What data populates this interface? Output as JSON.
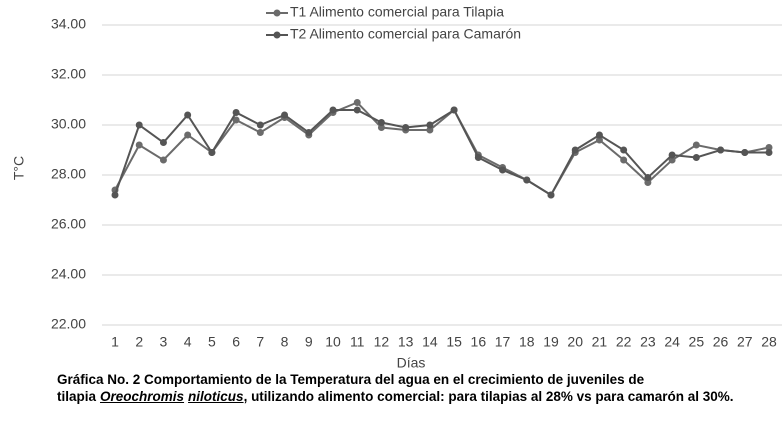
{
  "chart_data": {
    "type": "line",
    "categories": [
      "1",
      "2",
      "3",
      "4",
      "5",
      "6",
      "7",
      "8",
      "9",
      "10",
      "11",
      "12",
      "13",
      "14",
      "15",
      "16",
      "17",
      "18",
      "19",
      "20",
      "21",
      "22",
      "23",
      "24",
      "25",
      "26",
      "27",
      "28"
    ],
    "series": [
      {
        "name": "T1 Alimento comercial para Tilapia",
        "color": "#6b6b6b",
        "values": [
          27.4,
          29.2,
          28.6,
          29.6,
          28.9,
          30.2,
          29.7,
          30.3,
          29.6,
          30.5,
          30.9,
          29.9,
          29.8,
          29.8,
          30.6,
          28.8,
          28.3,
          27.8,
          27.2,
          28.9,
          29.4,
          28.6,
          27.7,
          28.6,
          29.2,
          29.0,
          28.9,
          29.1
        ]
      },
      {
        "name": "T2 Alimento comercial para Camarón",
        "color": "#555555",
        "values": [
          27.2,
          30.0,
          29.3,
          30.4,
          28.9,
          30.5,
          30.0,
          30.4,
          29.7,
          30.6,
          30.6,
          30.1,
          29.9,
          30.0,
          30.6,
          28.7,
          28.2,
          27.8,
          27.2,
          29.0,
          29.6,
          29.0,
          27.9,
          28.8,
          28.7,
          29.0,
          28.9,
          28.9
        ]
      }
    ],
    "xlabel": "Días",
    "ylabel": "T°C",
    "ylim": [
      22,
      34
    ],
    "yticks": [
      {
        "value": 22,
        "label": "22.00"
      },
      {
        "value": 24,
        "label": "24.00"
      },
      {
        "value": 26,
        "label": "26.00"
      },
      {
        "value": 28,
        "label": "28.00"
      },
      {
        "value": 30,
        "label": "30.00"
      },
      {
        "value": 32,
        "label": "32.00"
      },
      {
        "value": 34,
        "label": "34.00"
      }
    ],
    "grid": true,
    "legend": "top"
  },
  "caption": {
    "parts": [
      "Gráfica No. 2 Comportamiento de la Temperatura del agua en el crecimiento de juveniles de tilapia",
      "Oreochromis",
      "niloticus",
      ", utilizando alimento comercial: para tilapias al 28% vs para camarón al 30%."
    ]
  }
}
